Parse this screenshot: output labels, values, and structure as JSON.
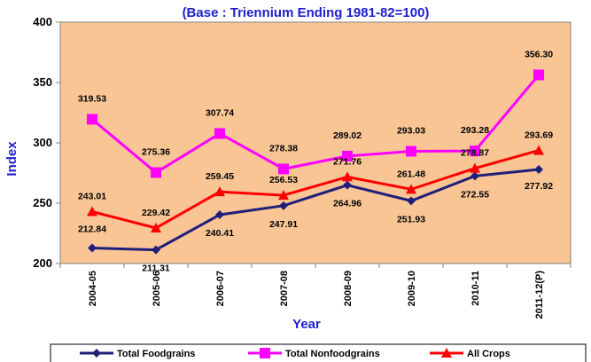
{
  "chart_data": {
    "type": "line",
    "title": "(Base : Triennium Ending 1981-82=100)",
    "xlabel": "Year",
    "ylabel": "Index",
    "ylim": [
      200,
      400
    ],
    "yticks": [
      "200",
      "250",
      "300",
      "350",
      "400"
    ],
    "ytick_values": [
      200,
      250,
      300,
      350,
      400
    ],
    "grid": false,
    "legend_position": "bottom",
    "categories": [
      "2004-05",
      "2005-06",
      "2006-07",
      "2007-08",
      "2008-09",
      "2009-10",
      "2010-11",
      "2011-12(P)"
    ],
    "series": [
      {
        "name": "Total Foodgrains",
        "color": "#1f1f7a",
        "marker": "diamond",
        "values": [
          212.84,
          211.31,
          240.41,
          247.91,
          264.96,
          251.93,
          272.55,
          277.92
        ],
        "labels": [
          "212.84",
          "211.31",
          "240.41",
          "247.91",
          "264.96",
          "251.93",
          "272.55",
          "277.92"
        ]
      },
      {
        "name": "Total Nonfoodgrains",
        "color": "#ff00ff",
        "marker": "square",
        "values": [
          319.53,
          275.36,
          307.74,
          278.38,
          289.02,
          293.03,
          293.28,
          356.3
        ],
        "labels": [
          "319.53",
          "275.36",
          "307.74",
          "278.38",
          "289.02",
          "293.03",
          "293.28",
          "356.30"
        ]
      },
      {
        "name": "All Crops",
        "color": "#ff0000",
        "marker": "triangle",
        "values": [
          243.01,
          229.42,
          259.45,
          256.53,
          271.76,
          261.48,
          278.87,
          293.69
        ],
        "labels": [
          "243.01",
          "229.42",
          "259.45",
          "256.53",
          "271.76",
          "261.48",
          "278.87",
          "293.69"
        ]
      }
    ],
    "colors": {
      "plot_background": "#f9c595",
      "title_color": "#1f1fcf",
      "page_background": "#ffffff"
    }
  }
}
